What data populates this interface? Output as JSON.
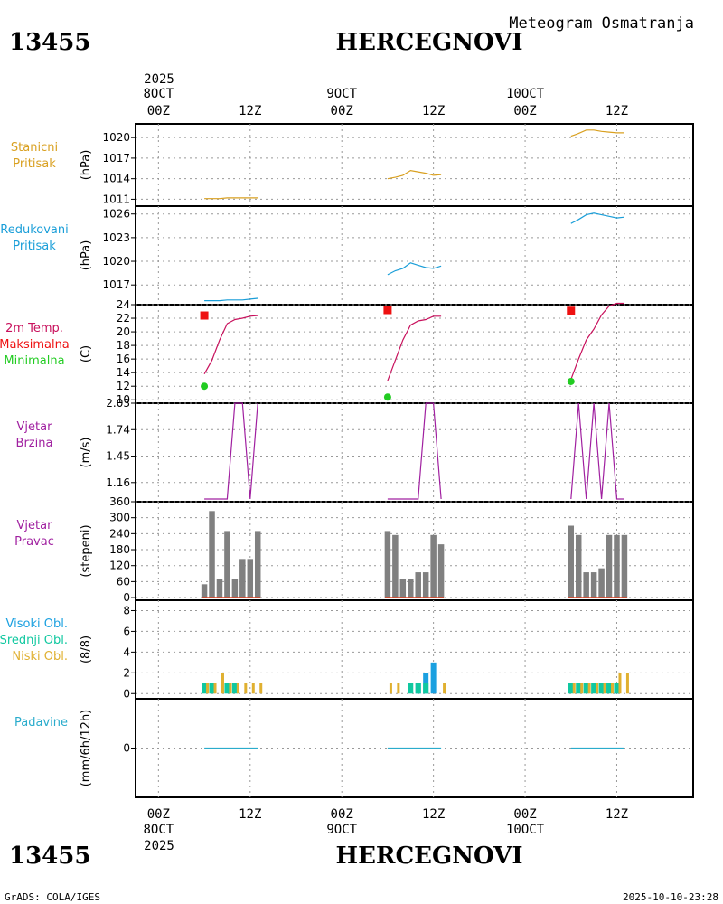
{
  "header": {
    "station_id": "13455",
    "station_name": "HERCEGNOVI",
    "title": "Meteogram Osmatranja"
  },
  "footer": {
    "left": "GrADS: COLA/IGES",
    "right": "2025-10-10-23:28"
  },
  "time_axis": {
    "top_year": "2025",
    "bottom_year": "2025",
    "dates": [
      "8OCT",
      "9OCT",
      "10OCT"
    ],
    "ticks": [
      {
        "hour": 0,
        "label": "00Z",
        "date_index": 0
      },
      {
        "hour": 12,
        "label": "12Z"
      },
      {
        "hour": 24,
        "label": "00Z",
        "date_index": 1
      },
      {
        "hour": 36,
        "label": "12Z"
      },
      {
        "hour": 48,
        "label": "00Z",
        "date_index": 2
      },
      {
        "hour": 60,
        "label": "12Z"
      }
    ],
    "range_hours": [
      -3,
      70
    ]
  },
  "colors": {
    "pressure_station": "#d9a020",
    "pressure_reduced": "#1a9ed8",
    "temperature": "#c8105c",
    "tmax": "#ee1111",
    "tmin": "#22cc22",
    "wind": "#a020a0",
    "wind_dir_bar": "#808080",
    "wind_dir_base": "#e04020",
    "cloud_high": "#1aa0e0",
    "cloud_mid": "#10c8a0",
    "cloud_low": "#e0b030",
    "precip": "#2aaccc"
  },
  "chart_data": [
    {
      "type": "line",
      "panel": "pressure_station",
      "labels": [
        "Stanicni",
        "Pritisak"
      ],
      "ylabel": "(hPa)",
      "ylim": [
        1010,
        1022
      ],
      "yticks": [
        1011,
        1014,
        1017,
        1020
      ],
      "series": [
        {
          "name": "8OCT",
          "x": [
            6,
            7,
            8,
            9,
            10,
            11,
            12,
            13
          ],
          "y": [
            1011.1,
            1011.1,
            1011.1,
            1011.2,
            1011.2,
            1011.2,
            1011.2,
            1011.2
          ]
        },
        {
          "name": "9OCT",
          "x": [
            30,
            31,
            32,
            33,
            34,
            35,
            36,
            37
          ],
          "y": [
            1014.0,
            1014.2,
            1014.5,
            1015.2,
            1015.0,
            1014.8,
            1014.5,
            1014.6
          ]
        },
        {
          "name": "10OCT",
          "x": [
            54,
            55,
            56,
            57,
            58,
            59,
            60,
            61
          ],
          "y": [
            1020.2,
            1020.6,
            1021.1,
            1021.1,
            1020.9,
            1020.8,
            1020.7,
            1020.7
          ]
        }
      ]
    },
    {
      "type": "line",
      "panel": "pressure_reduced",
      "labels": [
        "Redukovani",
        "Pritisak"
      ],
      "ylabel": "(hPa)",
      "ylim": [
        1014.5,
        1027
      ],
      "yticks": [
        1017,
        1020,
        1023,
        1026
      ],
      "series": [
        {
          "name": "8OCT",
          "x": [
            6,
            7,
            8,
            9,
            10,
            11,
            12,
            13
          ],
          "y": [
            1015.0,
            1015.0,
            1015.0,
            1015.1,
            1015.1,
            1015.1,
            1015.2,
            1015.3
          ]
        },
        {
          "name": "9OCT",
          "x": [
            30,
            31,
            32,
            33,
            34,
            35,
            36,
            37
          ],
          "y": [
            1018.3,
            1018.8,
            1019.1,
            1019.8,
            1019.5,
            1019.2,
            1019.1,
            1019.4
          ]
        },
        {
          "name": "10OCT",
          "x": [
            54,
            55,
            56,
            57,
            58,
            59,
            60,
            61
          ],
          "y": [
            1024.8,
            1025.3,
            1025.9,
            1026.1,
            1025.9,
            1025.7,
            1025.5,
            1025.6
          ]
        }
      ]
    },
    {
      "type": "line",
      "panel": "temperature",
      "labels": [
        "2m Temp.",
        "Maksimalna",
        "Minimalna"
      ],
      "ylabel": "(C)",
      "ylim": [
        9.5,
        24
      ],
      "yticks": [
        10,
        12,
        14,
        16,
        18,
        20,
        22,
        24
      ],
      "series": [
        {
          "name": "8OCT",
          "x": [
            6,
            7,
            8,
            9,
            10,
            11,
            12,
            13
          ],
          "y": [
            13.8,
            15.8,
            18.8,
            21.2,
            21.8,
            22.0,
            22.3,
            22.4
          ]
        },
        {
          "name": "9OCT",
          "x": [
            30,
            31,
            32,
            33,
            34,
            35,
            36,
            37
          ],
          "y": [
            12.8,
            15.8,
            18.8,
            21.0,
            21.6,
            21.8,
            22.3,
            22.3
          ]
        },
        {
          "name": "10OCT",
          "x": [
            54,
            55,
            56,
            57,
            58,
            59,
            60,
            61
          ],
          "y": [
            13.0,
            16.0,
            18.8,
            20.4,
            22.5,
            23.8,
            24.2,
            24.2
          ]
        }
      ],
      "tmax": [
        {
          "x": 6,
          "y": 22.4
        },
        {
          "x": 30,
          "y": 23.2
        },
        {
          "x": 54,
          "y": 23.1
        }
      ],
      "tmin": [
        {
          "x": 6,
          "y": 12.0
        },
        {
          "x": 30,
          "y": 10.4
        },
        {
          "x": 54,
          "y": 12.7
        }
      ]
    },
    {
      "type": "line",
      "panel": "wind_speed",
      "labels": [
        "Vjetar",
        "Brzina"
      ],
      "ylabel": "(m/s)",
      "ylim": [
        0.95,
        2.03
      ],
      "yticks": [
        1.16,
        1.45,
        1.74,
        2.03
      ],
      "series": [
        {
          "name": "8OCT",
          "x": [
            6,
            9,
            10,
            11,
            12,
            13
          ],
          "y": [
            0.98,
            0.98,
            2.03,
            2.03,
            0.98,
            2.03
          ]
        },
        {
          "name": "9OCT",
          "x": [
            30,
            34,
            35,
            36,
            37
          ],
          "y": [
            0.98,
            0.98,
            2.03,
            2.03,
            0.98
          ]
        },
        {
          "name": "10OCT",
          "x": [
            54,
            55,
            56,
            57,
            58,
            59,
            60,
            61
          ],
          "y": [
            0.98,
            2.03,
            0.98,
            2.03,
            0.98,
            2.03,
            0.98,
            0.98
          ]
        }
      ]
    },
    {
      "type": "bar",
      "panel": "wind_direction",
      "labels": [
        "Vjetar",
        "Pravac"
      ],
      "ylabel": "(stepeni)",
      "ylim": [
        -10,
        360
      ],
      "yticks": [
        0,
        60,
        120,
        180,
        240,
        300,
        360
      ],
      "x": [
        6,
        7,
        8,
        9,
        10,
        11,
        12,
        13,
        30,
        31,
        32,
        33,
        34,
        35,
        36,
        37,
        54,
        55,
        56,
        57,
        58,
        59,
        60,
        61
      ],
      "values": [
        50,
        325,
        70,
        250,
        70,
        145,
        145,
        250,
        250,
        235,
        70,
        70,
        95,
        95,
        235,
        200,
        270,
        235,
        95,
        95,
        110,
        235,
        235,
        235
      ]
    },
    {
      "type": "bar",
      "panel": "clouds",
      "labels": [
        "Visoki Obl.",
        "Srednji Obl.",
        "Niski Obl."
      ],
      "ylabel": "(8/8)",
      "ylim": [
        -0.5,
        9
      ],
      "yticks": [
        0,
        2,
        4,
        6,
        8
      ],
      "x": [
        6,
        7,
        8,
        9,
        10,
        11,
        12,
        13,
        30,
        31,
        32,
        33,
        34,
        35,
        36,
        37,
        54,
        55,
        56,
        57,
        58,
        59,
        60,
        61
      ],
      "series": [
        {
          "name": "Visoki Obl.",
          "values": [
            0,
            0,
            0,
            0,
            0,
            0,
            0,
            0,
            0,
            0,
            0,
            0,
            1,
            2,
            3,
            0,
            0,
            0,
            0,
            0,
            0,
            0,
            1,
            0
          ]
        },
        {
          "name": "Srednji Obl.",
          "values": [
            1,
            1,
            0,
            1,
            1,
            0,
            0,
            0,
            0,
            0,
            0,
            1,
            1,
            1,
            0,
            0,
            1,
            1,
            1,
            1,
            1,
            1,
            1,
            0
          ]
        },
        {
          "name": "Niski Obl.",
          "values": [
            1,
            1,
            2,
            1,
            1,
            1,
            1,
            1,
            1,
            1,
            0,
            0,
            0,
            0,
            0,
            1,
            1,
            1,
            1,
            1,
            1,
            1,
            2,
            2
          ]
        }
      ]
    },
    {
      "type": "line",
      "panel": "precipitation",
      "labels": [
        "Padavine"
      ],
      "ylabel": "(mm/6h/12h)",
      "ylim": [
        -5,
        5
      ],
      "yticks": [
        0
      ],
      "series": [
        {
          "name": "8OCT",
          "x": [
            6,
            13
          ],
          "y": [
            0,
            0
          ]
        },
        {
          "name": "9OCT",
          "x": [
            30,
            37
          ],
          "y": [
            0,
            0
          ]
        },
        {
          "name": "10OCT",
          "x": [
            54,
            61
          ],
          "y": [
            0,
            0
          ]
        }
      ]
    }
  ]
}
